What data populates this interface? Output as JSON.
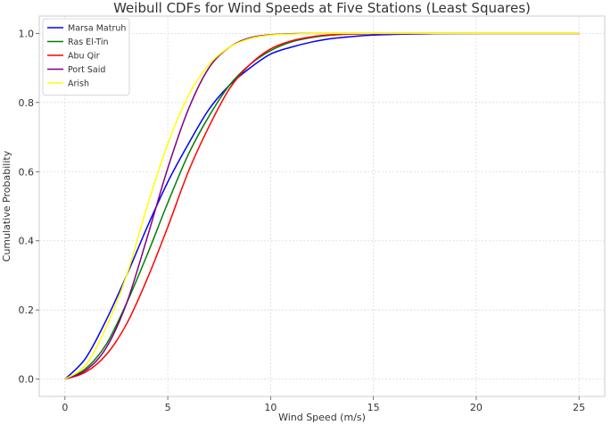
{
  "chart_data": {
    "type": "line",
    "title": "Weibull CDFs for Wind Speeds at Five Stations (Least Squares)",
    "xlabel": "Wind Speed (m/s)",
    "ylabel": "Cumulative Probability",
    "xlim": [
      -1.25,
      26.25
    ],
    "ylim": [
      -0.05,
      1.05
    ],
    "xticks": [
      0,
      5,
      10,
      15,
      20,
      25
    ],
    "xtick_labels": [
      "0",
      "5",
      "10",
      "15",
      "20",
      "25"
    ],
    "yticks": [
      0.0,
      0.2,
      0.4,
      0.6,
      0.8,
      1.0
    ],
    "ytick_labels": [
      "0.0",
      "0.2",
      "0.4",
      "0.6",
      "0.8",
      "1.0"
    ],
    "grid": true,
    "legend_position": "top-left",
    "x": [
      0,
      1,
      2,
      3,
      4,
      5,
      6,
      7,
      8,
      9,
      10,
      11,
      12,
      13,
      14,
      15,
      16,
      17,
      18,
      19,
      20,
      21,
      22,
      23,
      24,
      25
    ],
    "series": [
      {
        "name": "Marsa Matruh",
        "color": "#0000ff",
        "values": [
          0.0,
          0.06,
          0.17,
          0.3,
          0.44,
          0.57,
          0.68,
          0.78,
          0.85,
          0.9,
          0.94,
          0.96,
          0.975,
          0.985,
          0.991,
          0.995,
          0.997,
          0.998,
          0.999,
          0.9995,
          1.0,
          1.0,
          1.0,
          1.0,
          1.0,
          1.0
        ]
      },
      {
        "name": "Ras El-Tin",
        "color": "#008000",
        "values": [
          0.0,
          0.03,
          0.1,
          0.22,
          0.36,
          0.51,
          0.65,
          0.76,
          0.85,
          0.91,
          0.95,
          0.975,
          0.988,
          0.995,
          0.998,
          0.999,
          1.0,
          1.0,
          1.0,
          1.0,
          1.0,
          1.0,
          1.0,
          1.0,
          1.0,
          1.0
        ]
      },
      {
        "name": "Abu Qir",
        "color": "#ff0000",
        "values": [
          0.0,
          0.02,
          0.07,
          0.16,
          0.29,
          0.44,
          0.6,
          0.73,
          0.84,
          0.91,
          0.955,
          0.978,
          0.99,
          0.996,
          0.998,
          0.999,
          1.0,
          1.0,
          1.0,
          1.0,
          1.0,
          1.0,
          1.0,
          1.0,
          1.0,
          1.0
        ]
      },
      {
        "name": "Port Said",
        "color": "#800080",
        "values": [
          0.0,
          0.025,
          0.09,
          0.22,
          0.41,
          0.61,
          0.78,
          0.9,
          0.96,
          0.987,
          0.996,
          0.999,
          1.0,
          1.0,
          1.0,
          1.0,
          1.0,
          1.0,
          1.0,
          1.0,
          1.0,
          1.0,
          1.0,
          1.0,
          1.0,
          1.0
        ]
      },
      {
        "name": "Arish",
        "color": "#ffff00",
        "values": [
          0.0,
          0.04,
          0.15,
          0.3,
          0.5,
          0.68,
          0.82,
          0.91,
          0.96,
          0.985,
          0.995,
          0.998,
          1.0,
          1.0,
          1.0,
          1.0,
          1.0,
          1.0,
          1.0,
          1.0,
          1.0,
          1.0,
          1.0,
          1.0,
          1.0,
          1.0
        ]
      }
    ]
  }
}
